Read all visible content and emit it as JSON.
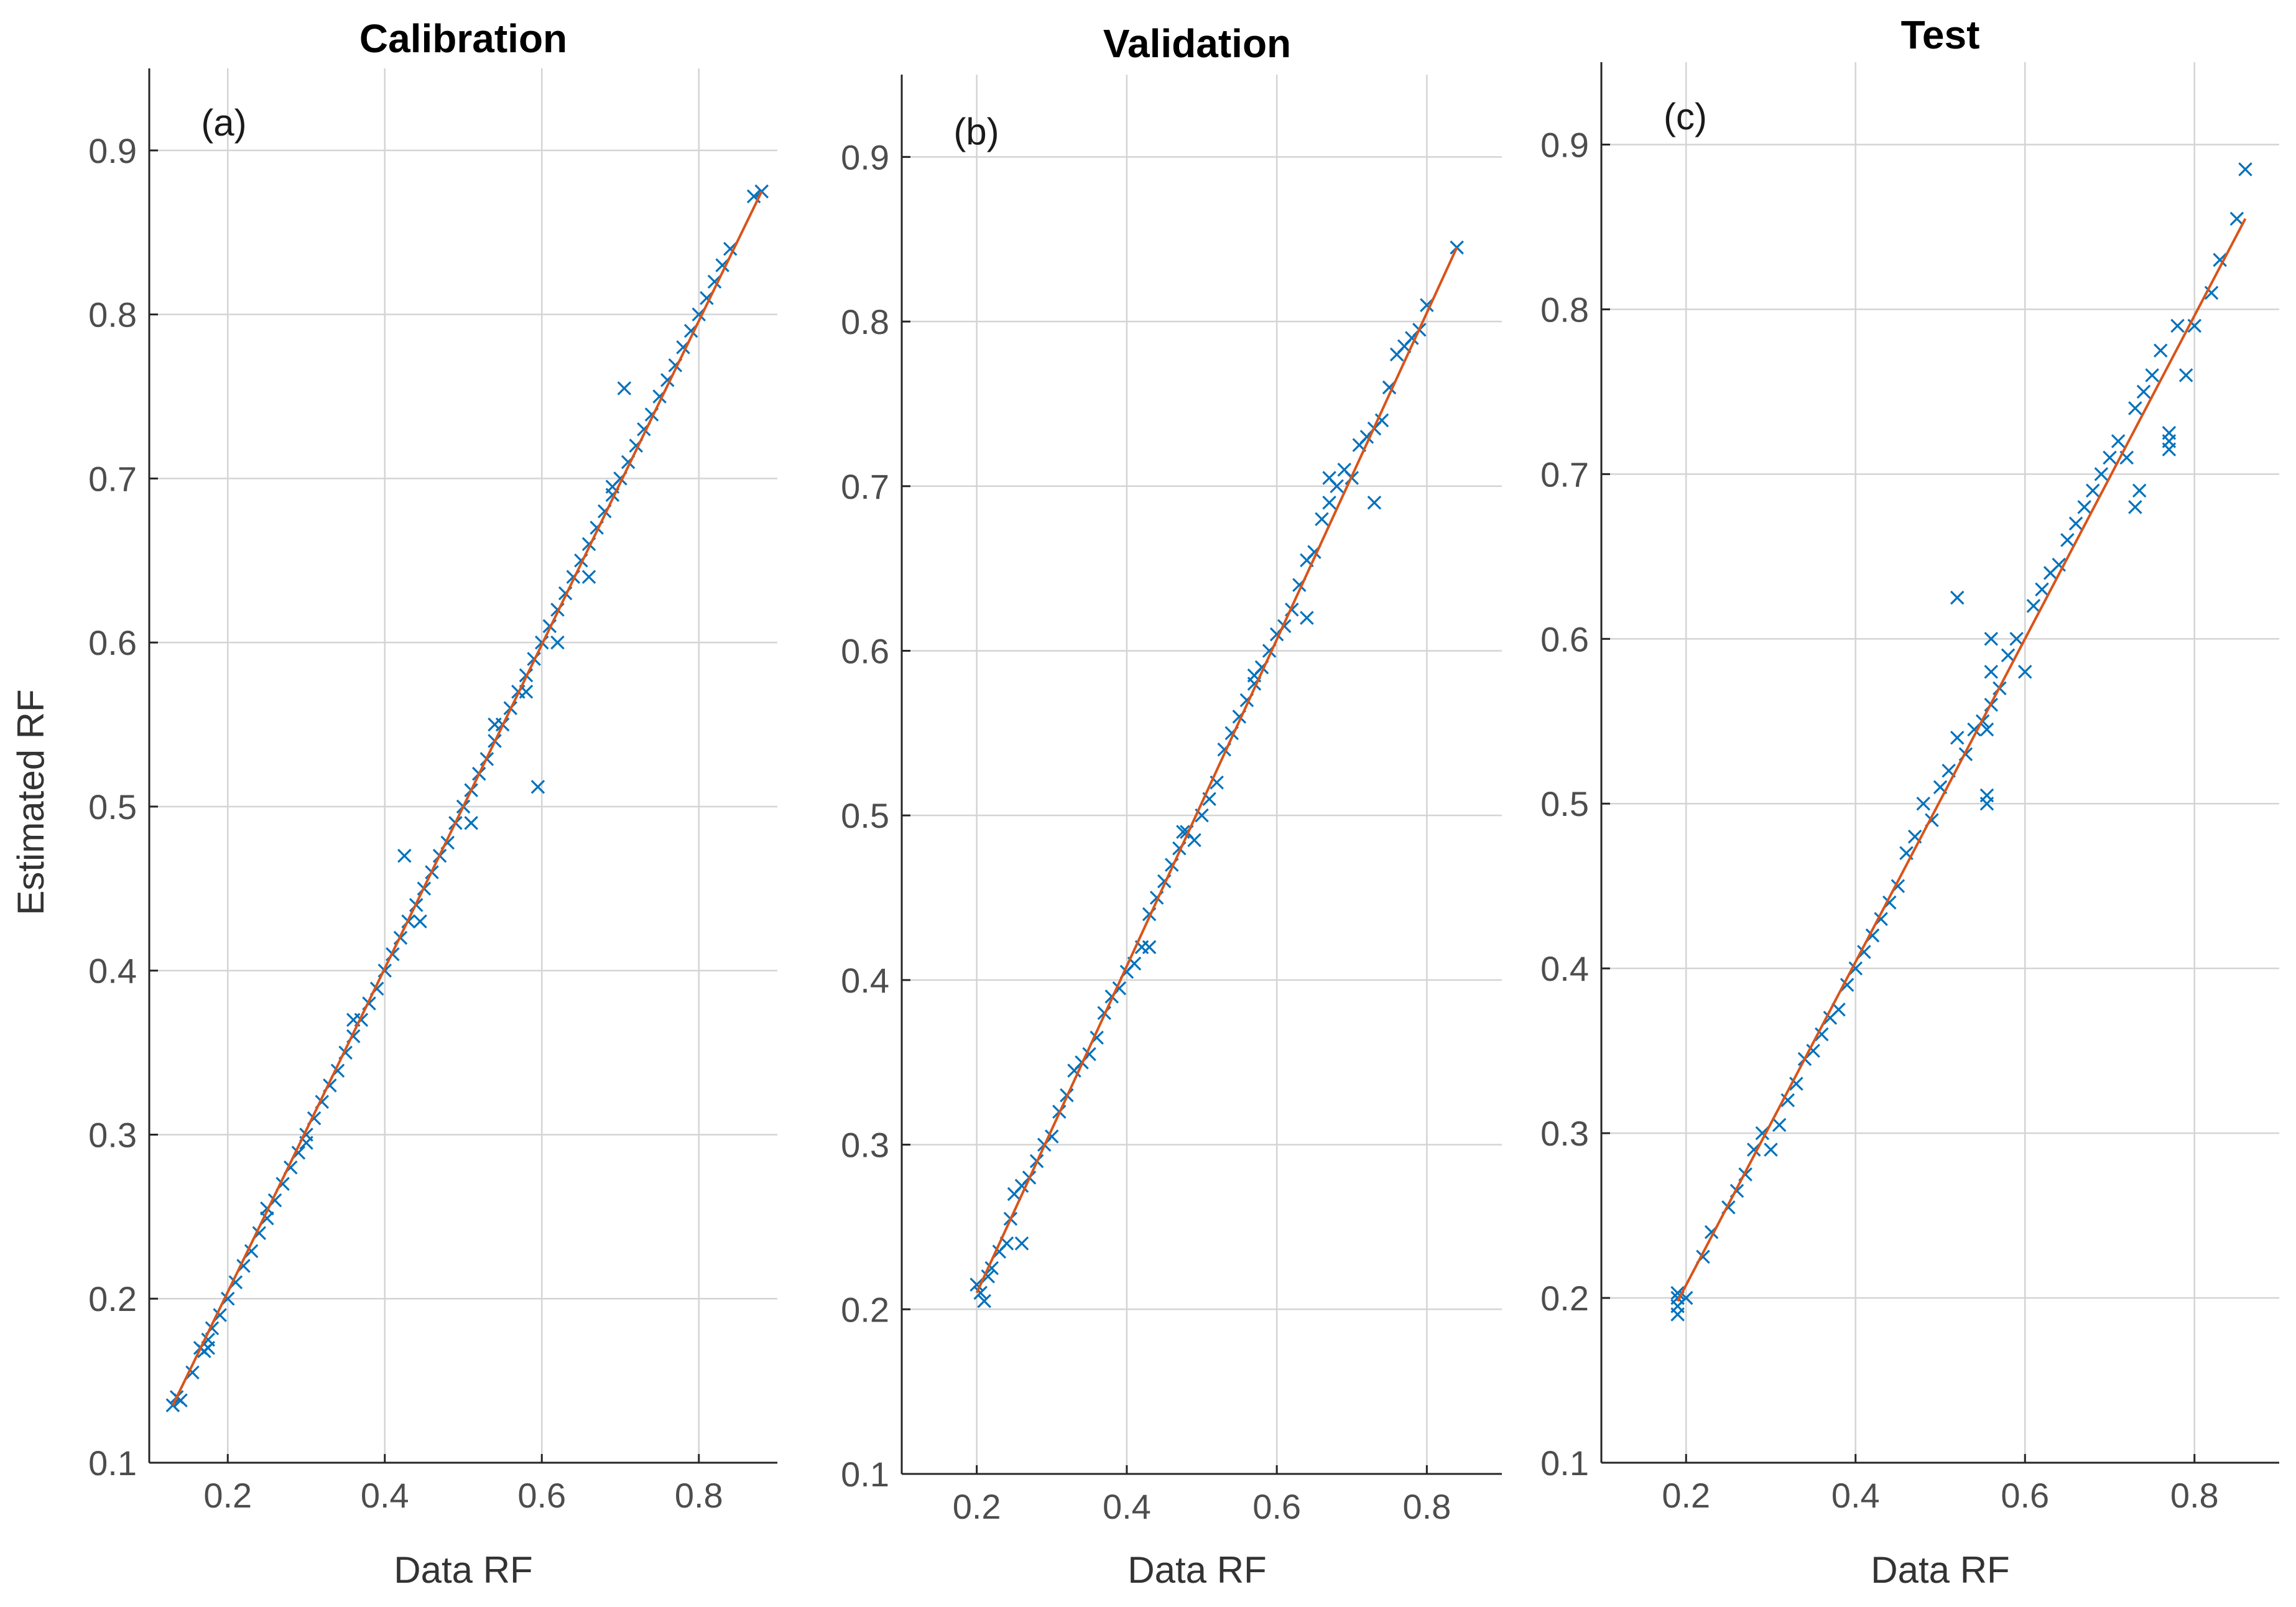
{
  "colors": {
    "marker": "#0072BD",
    "fit_line": "#D95319",
    "grid": "#d4d4d4",
    "axis": "#262626"
  },
  "chart_data": [
    {
      "type": "scatter",
      "title": "Calibration",
      "panel_label": "(a)",
      "xlabel": "Data RF",
      "ylabel": "Estimated RF",
      "xlim": [
        0.1,
        0.9
      ],
      "ylim": [
        0.1,
        0.95
      ],
      "xticks": [
        0.2,
        0.4,
        0.6,
        0.8
      ],
      "yticks": [
        0.1,
        0.2,
        0.3,
        0.4,
        0.5,
        0.6,
        0.7,
        0.8,
        0.9
      ],
      "xtick_labels": [
        "0.2",
        "0.4",
        "0.6",
        "0.8"
      ],
      "ytick_labels": [
        "0.1",
        "0.2",
        "0.3",
        "0.4",
        "0.5",
        "0.6",
        "0.7",
        "0.8",
        "0.9"
      ],
      "grid": true,
      "marker": "x",
      "fit_line": {
        "x": [
          0.13,
          0.88
        ],
        "y": [
          0.135,
          0.875
        ]
      },
      "points": {
        "x": [
          0.13,
          0.135,
          0.14,
          0.155,
          0.165,
          0.17,
          0.175,
          0.18,
          0.19,
          0.2,
          0.21,
          0.22,
          0.23,
          0.24,
          0.25,
          0.26,
          0.27,
          0.28,
          0.29,
          0.3,
          0.31,
          0.32,
          0.33,
          0.34,
          0.35,
          0.36,
          0.37,
          0.38,
          0.39,
          0.4,
          0.41,
          0.42,
          0.43,
          0.44,
          0.45,
          0.46,
          0.47,
          0.48,
          0.49,
          0.5,
          0.51,
          0.52,
          0.53,
          0.54,
          0.55,
          0.56,
          0.57,
          0.58,
          0.59,
          0.6,
          0.61,
          0.62,
          0.63,
          0.64,
          0.65,
          0.66,
          0.67,
          0.68,
          0.69,
          0.7,
          0.71,
          0.72,
          0.73,
          0.74,
          0.75,
          0.76,
          0.77,
          0.78,
          0.79,
          0.8,
          0.81,
          0.82,
          0.83,
          0.84,
          0.87,
          0.88,
          0.705,
          0.595,
          0.425,
          0.51,
          0.54,
          0.58,
          0.62,
          0.66,
          0.69,
          0.445,
          0.36,
          0.3,
          0.25,
          0.175
        ],
        "y": [
          0.135,
          0.14,
          0.138,
          0.155,
          0.17,
          0.168,
          0.175,
          0.182,
          0.19,
          0.2,
          0.21,
          0.22,
          0.229,
          0.24,
          0.249,
          0.26,
          0.27,
          0.28,
          0.289,
          0.3,
          0.31,
          0.32,
          0.33,
          0.339,
          0.35,
          0.36,
          0.37,
          0.38,
          0.389,
          0.4,
          0.41,
          0.42,
          0.43,
          0.44,
          0.45,
          0.46,
          0.47,
          0.478,
          0.49,
          0.5,
          0.51,
          0.52,
          0.529,
          0.54,
          0.55,
          0.56,
          0.57,
          0.58,
          0.59,
          0.6,
          0.61,
          0.62,
          0.63,
          0.64,
          0.65,
          0.66,
          0.67,
          0.68,
          0.69,
          0.7,
          0.71,
          0.72,
          0.73,
          0.739,
          0.75,
          0.76,
          0.769,
          0.78,
          0.79,
          0.8,
          0.81,
          0.82,
          0.83,
          0.84,
          0.872,
          0.875,
          0.755,
          0.512,
          0.47,
          0.49,
          0.55,
          0.57,
          0.6,
          0.64,
          0.695,
          0.43,
          0.37,
          0.295,
          0.255,
          0.17
        ]
      }
    },
    {
      "type": "scatter",
      "title": "Validation",
      "panel_label": "(b)",
      "xlabel": "Data RF",
      "ylabel": "",
      "xlim": [
        0.1,
        0.9
      ],
      "ylim": [
        0.1,
        0.95
      ],
      "xticks": [
        0.2,
        0.4,
        0.6,
        0.8
      ],
      "yticks": [
        0.1,
        0.2,
        0.3,
        0.4,
        0.5,
        0.6,
        0.7,
        0.8,
        0.9
      ],
      "xtick_labels": [
        "0.2",
        "0.4",
        "0.6",
        "0.8"
      ],
      "ytick_labels": [
        "0.1",
        "0.2",
        "0.3",
        "0.4",
        "0.5",
        "0.6",
        "0.7",
        "0.8",
        "0.9"
      ],
      "grid": true,
      "marker": "x",
      "fit_line": {
        "x": [
          0.2,
          0.84
        ],
        "y": [
          0.21,
          0.845
        ]
      },
      "points": {
        "x": [
          0.2,
          0.205,
          0.21,
          0.215,
          0.22,
          0.23,
          0.24,
          0.25,
          0.26,
          0.27,
          0.28,
          0.29,
          0.3,
          0.31,
          0.32,
          0.33,
          0.34,
          0.35,
          0.36,
          0.37,
          0.38,
          0.39,
          0.4,
          0.41,
          0.42,
          0.43,
          0.44,
          0.45,
          0.46,
          0.47,
          0.48,
          0.49,
          0.5,
          0.51,
          0.52,
          0.53,
          0.54,
          0.55,
          0.56,
          0.57,
          0.58,
          0.59,
          0.6,
          0.61,
          0.62,
          0.63,
          0.64,
          0.65,
          0.66,
          0.67,
          0.68,
          0.69,
          0.7,
          0.71,
          0.72,
          0.73,
          0.74,
          0.75,
          0.76,
          0.77,
          0.78,
          0.79,
          0.8,
          0.84,
          0.26,
          0.245,
          0.43,
          0.475,
          0.57,
          0.64,
          0.73,
          0.67
        ],
        "y": [
          0.215,
          0.21,
          0.205,
          0.22,
          0.225,
          0.235,
          0.24,
          0.27,
          0.275,
          0.28,
          0.29,
          0.3,
          0.305,
          0.32,
          0.33,
          0.345,
          0.35,
          0.355,
          0.365,
          0.38,
          0.39,
          0.395,
          0.405,
          0.41,
          0.42,
          0.44,
          0.45,
          0.46,
          0.47,
          0.48,
          0.49,
          0.485,
          0.5,
          0.51,
          0.52,
          0.54,
          0.55,
          0.56,
          0.57,
          0.585,
          0.59,
          0.6,
          0.61,
          0.615,
          0.625,
          0.64,
          0.655,
          0.66,
          0.68,
          0.69,
          0.7,
          0.71,
          0.705,
          0.725,
          0.73,
          0.735,
          0.74,
          0.76,
          0.78,
          0.785,
          0.79,
          0.795,
          0.81,
          0.845,
          0.24,
          0.255,
          0.42,
          0.49,
          0.58,
          0.62,
          0.69,
          0.705
        ]
      }
    },
    {
      "type": "scatter",
      "title": "Test",
      "panel_label": "(c)",
      "xlabel": "Data RF",
      "ylabel": "",
      "xlim": [
        0.1,
        0.9
      ],
      "ylim": [
        0.1,
        0.95
      ],
      "xticks": [
        0.2,
        0.4,
        0.6,
        0.8
      ],
      "yticks": [
        0.1,
        0.2,
        0.3,
        0.4,
        0.5,
        0.6,
        0.7,
        0.8,
        0.9
      ],
      "xtick_labels": [
        "0.2",
        "0.4",
        "0.6",
        "0.8"
      ],
      "ytick_labels": [
        "0.1",
        "0.2",
        "0.3",
        "0.4",
        "0.5",
        "0.6",
        "0.7",
        "0.8",
        "0.9"
      ],
      "grid": true,
      "marker": "x",
      "fit_line": {
        "x": [
          0.19,
          0.86
        ],
        "y": [
          0.198,
          0.855
        ]
      },
      "points": {
        "x": [
          0.19,
          0.19,
          0.19,
          0.19,
          0.2,
          0.22,
          0.23,
          0.25,
          0.26,
          0.27,
          0.28,
          0.29,
          0.3,
          0.31,
          0.32,
          0.33,
          0.34,
          0.35,
          0.36,
          0.37,
          0.38,
          0.39,
          0.4,
          0.41,
          0.42,
          0.43,
          0.44,
          0.45,
          0.46,
          0.47,
          0.48,
          0.49,
          0.5,
          0.51,
          0.52,
          0.53,
          0.54,
          0.55,
          0.56,
          0.56,
          0.56,
          0.57,
          0.58,
          0.59,
          0.6,
          0.61,
          0.62,
          0.63,
          0.64,
          0.65,
          0.66,
          0.67,
          0.68,
          0.69,
          0.7,
          0.71,
          0.72,
          0.73,
          0.74,
          0.75,
          0.76,
          0.77,
          0.77,
          0.77,
          0.78,
          0.79,
          0.8,
          0.82,
          0.83,
          0.85,
          0.86,
          0.52,
          0.555,
          0.555,
          0.735,
          0.73,
          0.555
        ],
        "y": [
          0.19,
          0.195,
          0.2,
          0.203,
          0.2,
          0.225,
          0.24,
          0.255,
          0.265,
          0.275,
          0.29,
          0.3,
          0.29,
          0.305,
          0.32,
          0.33,
          0.345,
          0.35,
          0.36,
          0.37,
          0.375,
          0.39,
          0.4,
          0.41,
          0.42,
          0.43,
          0.44,
          0.45,
          0.47,
          0.48,
          0.5,
          0.49,
          0.51,
          0.52,
          0.54,
          0.53,
          0.545,
          0.55,
          0.56,
          0.58,
          0.6,
          0.57,
          0.59,
          0.6,
          0.58,
          0.62,
          0.63,
          0.64,
          0.645,
          0.66,
          0.67,
          0.68,
          0.69,
          0.7,
          0.71,
          0.72,
          0.71,
          0.74,
          0.75,
          0.76,
          0.775,
          0.72,
          0.715,
          0.725,
          0.79,
          0.76,
          0.79,
          0.81,
          0.83,
          0.855,
          0.885,
          0.625,
          0.505,
          0.5,
          0.69,
          0.68,
          0.545
        ]
      }
    }
  ]
}
